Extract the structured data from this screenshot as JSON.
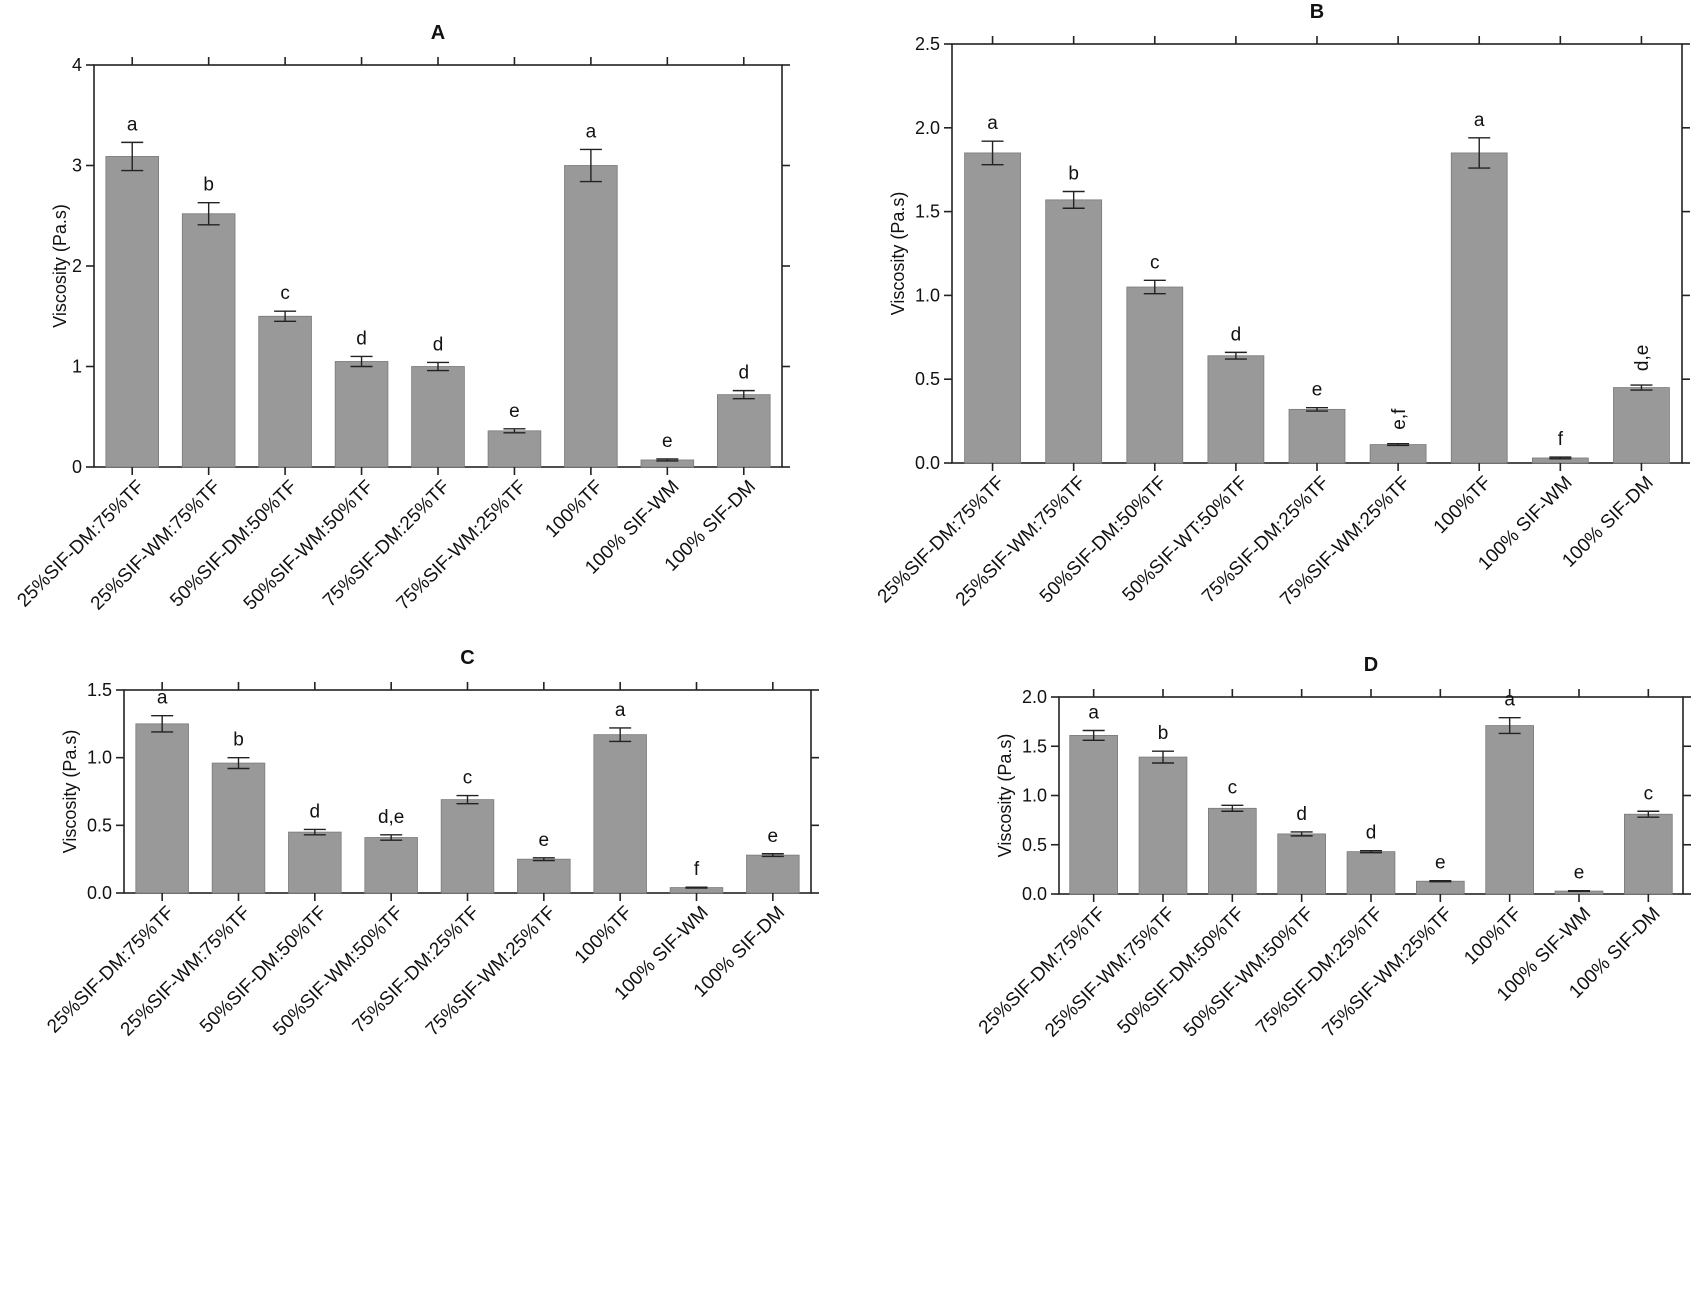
{
  "chart_data": [
    {
      "type": "bar",
      "title": "A",
      "ylabel": "Viscosity (Pa.s)",
      "ylim": [
        0,
        4
      ],
      "yticks": [
        "0",
        "1",
        "2",
        "3",
        "4"
      ],
      "categories": [
        "25%SIF-DM:75%TF",
        "25%SIF-WM:75%TF",
        "50%SIF-DM:50%TF",
        "50%SIF-WM:50%TF",
        "75%SIF-DM:25%TF",
        "75%SIF-WM:25%TF",
        "100%TF",
        "100% SIF-WM",
        "100% SIF-DM"
      ],
      "values": [
        3.09,
        2.52,
        1.5,
        1.05,
        1.0,
        0.36,
        3.0,
        0.07,
        0.72
      ],
      "errors": [
        0.14,
        0.11,
        0.05,
        0.05,
        0.04,
        0.02,
        0.16,
        0.01,
        0.04
      ],
      "labels": [
        "a",
        "b",
        "c",
        "d",
        "d",
        "e",
        "a",
        "e",
        "d"
      ],
      "bar_color": "#999999"
    },
    {
      "type": "bar",
      "title": "B",
      "ylabel": "Viscosity (Pa.s)",
      "ylim": [
        0,
        2.5
      ],
      "yticks": [
        "0.0",
        "0.5",
        "1.0",
        "1.5",
        "2.0",
        "2.5"
      ],
      "categories": [
        "25%SIF-DM:75%TF",
        "25%SIF-WM:75%TF",
        "50%SIF-DM:50%TF",
        "50%SIF-WT:50%TF",
        "75%SIF-DM:25%TF",
        "75%SIF-WM:25%TF",
        "100%TF",
        "100% SIF-WM",
        "100% SIF-DM"
      ],
      "values": [
        1.85,
        1.57,
        1.05,
        0.64,
        0.32,
        0.11,
        1.85,
        0.03,
        0.45
      ],
      "errors": [
        0.07,
        0.05,
        0.04,
        0.02,
        0.01,
        0.005,
        0.09,
        0.005,
        0.015
      ],
      "labels": [
        "a",
        "b",
        "c",
        "d",
        "e",
        "e,f",
        "a",
        "f",
        "d,e"
      ],
      "bar_color": "#999999"
    },
    {
      "type": "bar",
      "title": "C",
      "ylabel": "Viscosity (Pa.s)",
      "ylim": [
        0,
        1.5
      ],
      "yticks": [
        "0.0",
        "0.5",
        "1.0",
        "1.5"
      ],
      "categories": [
        "25%SIF-DM:75%TF",
        "25%SIF-WM:75%TF",
        "50%SIF-DM:50%TF",
        "50%SIF-WM:50%TF",
        "75%SIF-DM:25%TF",
        "75%SIF-WM:25%TF",
        "100%TF",
        "100% SIF-WM",
        "100% SIF-DM"
      ],
      "values": [
        1.25,
        0.96,
        0.45,
        0.41,
        0.69,
        0.25,
        1.17,
        0.04,
        0.28
      ],
      "errors": [
        0.06,
        0.04,
        0.02,
        0.02,
        0.03,
        0.01,
        0.05,
        0.003,
        0.01
      ],
      "labels": [
        "a",
        "b",
        "d",
        "d,e",
        "c",
        "e",
        "a",
        "f",
        "e"
      ],
      "bar_color": "#999999"
    },
    {
      "type": "bar",
      "title": "D",
      "ylabel": "Viscosity (Pa.s)",
      "ylim": [
        0,
        2.0
      ],
      "yticks": [
        "0.0",
        "0.5",
        "1.0",
        "1.5",
        "2.0"
      ],
      "categories": [
        "25%SIF-DM:75%TF",
        "25%SIF-WM:75%TF",
        "50%SIF-DM:50%TF",
        "50%SIF-WM:50%TF",
        "75%SIF-DM:25%TF",
        "75%SIF-WM:25%TF",
        "100%TF",
        "100% SIF-WM",
        "100% SIF-DM"
      ],
      "values": [
        1.61,
        1.39,
        0.87,
        0.61,
        0.43,
        0.13,
        1.71,
        0.03,
        0.81
      ],
      "errors": [
        0.05,
        0.06,
        0.03,
        0.02,
        0.01,
        0.005,
        0.08,
        0.003,
        0.03
      ],
      "labels": [
        "a",
        "b",
        "c",
        "d",
        "d",
        "e",
        "a",
        "e",
        "c"
      ],
      "bar_color": "#999999"
    }
  ]
}
